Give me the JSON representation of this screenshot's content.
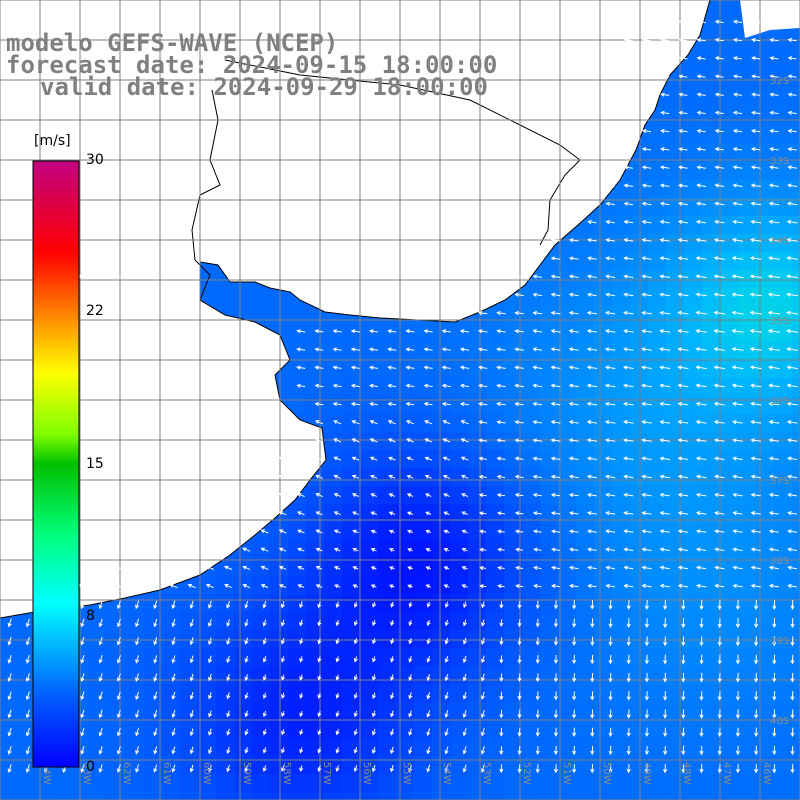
{
  "header": {
    "model": "modelo GEFS-WAVE (NCEP)",
    "forecast": "forecast date: 2024-09-15 18:00:00",
    "valid": "valid date: 2024-09-29 18:00:00"
  },
  "colorbar": {
    "unit": "[m/s]",
    "min": 0,
    "max": 30,
    "ticks": [
      "30",
      "22",
      "15",
      "8",
      "0"
    ],
    "tick_values": [
      30,
      22,
      15,
      8,
      0
    ],
    "colors": [
      "#0000ff",
      "#00b0ff",
      "#00ffe0",
      "#00ff00",
      "#ffff00",
      "#ff8000",
      "#ff0000",
      "#c00080"
    ]
  },
  "map": {
    "lon_range": [
      -65,
      -45
    ],
    "lat_range": [
      -41,
      -31
    ],
    "lat_labels": [
      "32S",
      "33S",
      "34S",
      "35S",
      "36S",
      "37S",
      "38S",
      "39S",
      "40S"
    ],
    "lon_labels": [
      "64W",
      "63W",
      "62W",
      "61W",
      "60W",
      "59W",
      "58W",
      "57W",
      "56W",
      "55W",
      "54W",
      "53W",
      "52W",
      "51W",
      "50W",
      "49W",
      "48W",
      "47W",
      "46W"
    ],
    "land_color": "#ffffff",
    "grid_color": "#808080"
  }
}
